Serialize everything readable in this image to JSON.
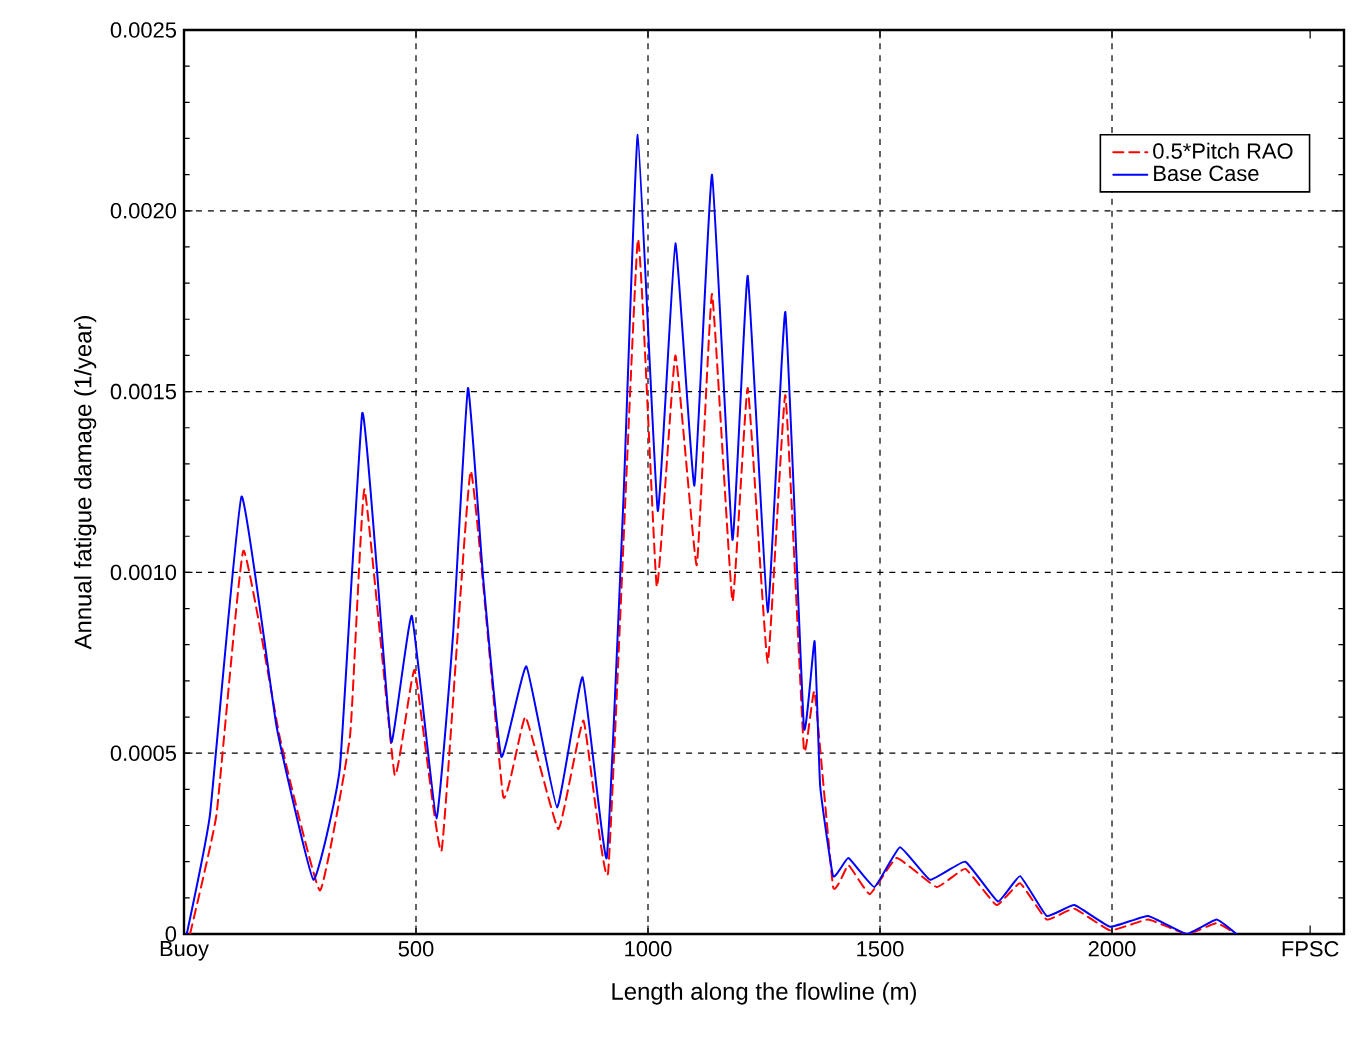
{
  "chart_data": {
    "type": "line",
    "xlabel": "Length along the flowline (m)",
    "ylabel": "Annual fatigue damage (1/year)",
    "xlim": [
      0,
      2500
    ],
    "ylim": [
      0,
      0.0025
    ],
    "xticks": [
      {
        "value": 0,
        "label": "Buoy"
      },
      500,
      1000,
      1500,
      2000,
      {
        "value": 2427,
        "label": "FPSC"
      }
    ],
    "yticks": [
      0,
      0.0005,
      {
        "value": 0.001,
        "label": "0.0010"
      },
      0.0015,
      {
        "value": 0.002,
        "label": "0.0020"
      },
      0.0025
    ],
    "grid": true,
    "legend": "top right",
    "series": [
      {
        "name": "0.5*Pitch RAO",
        "color": "#ff0000",
        "line_style": "dashed",
        "x": [
          13,
          70,
          128,
          207,
          293,
          358,
          389,
          454,
          497,
          555,
          618,
          688,
          736,
          807,
          861,
          914,
          978,
          1019,
          1059,
          1105,
          1138,
          1182,
          1215,
          1258,
          1296,
          1336,
          1359,
          1399,
          1432,
          1478,
          1536,
          1622,
          1684,
          1751,
          1802,
          1859,
          1919,
          1996,
          2078,
          2161,
          2225,
          2268
        ],
        "values": [
          0,
          0.00033,
          0.00106,
          0.00054,
          0.00012,
          0.00055,
          0.00123,
          0.00044,
          0.00073,
          0.00023,
          0.00128,
          0.00038,
          0.0006,
          0.00029,
          0.00059,
          0.00017,
          0.00192,
          0.00096,
          0.0016,
          0.00102,
          0.00177,
          0.00092,
          0.00151,
          0.00075,
          0.00149,
          0.00051,
          0.00067,
          0.00013,
          0.00019,
          0.00011,
          0.00021,
          0.00013,
          0.00018,
          8e-05,
          0.00014,
          4e-05,
          7e-05,
          1e-05,
          4e-05,
          0,
          3e-05,
          0
        ]
      },
      {
        "name": "Base Case",
        "color": "#0000ff",
        "line_style": "solid",
        "x": [
          6,
          56,
          124,
          200,
          279,
          336,
          384,
          415,
          447,
          491,
          544,
          580,
          612,
          645,
          684,
          738,
          804,
          859,
          911,
          947,
          978,
          1021,
          1059,
          1100,
          1138,
          1182,
          1215,
          1258,
          1296,
          1336,
          1359,
          1371,
          1399,
          1432,
          1488,
          1543,
          1608,
          1684,
          1754,
          1802,
          1859,
          1919,
          1996,
          2078,
          2161,
          2225,
          2268
        ],
        "values": [
          0,
          0.00033,
          0.00121,
          0.00057,
          0.00015,
          0.00046,
          0.00144,
          0.00102,
          0.00053,
          0.00088,
          0.00032,
          0.00083,
          0.00151,
          0.00098,
          0.00049,
          0.00074,
          0.00035,
          0.00071,
          0.00021,
          0.0012,
          0.00221,
          0.00117,
          0.00191,
          0.00124,
          0.0021,
          0.00109,
          0.00182,
          0.00089,
          0.00172,
          0.00057,
          0.00081,
          0.00041,
          0.00016,
          0.00021,
          0.00013,
          0.00024,
          0.00015,
          0.0002,
          9e-05,
          0.00016,
          5e-05,
          8e-05,
          2e-05,
          5e-05,
          0,
          4e-05,
          0
        ]
      }
    ]
  }
}
